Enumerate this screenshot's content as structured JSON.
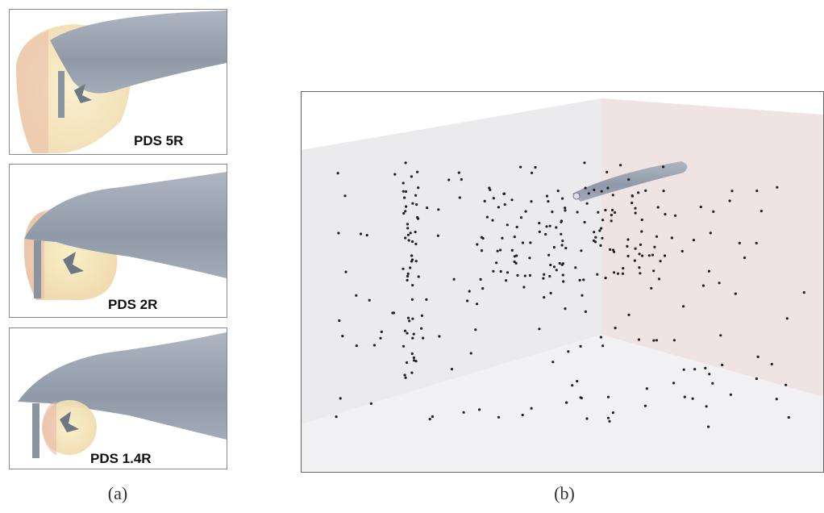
{
  "panel_a": {
    "views": [
      {
        "label": "PDS 5R"
      },
      {
        "label": "PDS 2R"
      },
      {
        "label": "PDS 1.4R"
      }
    ],
    "caption": "(a)"
  },
  "panel_b": {
    "caption": "(b)"
  }
}
